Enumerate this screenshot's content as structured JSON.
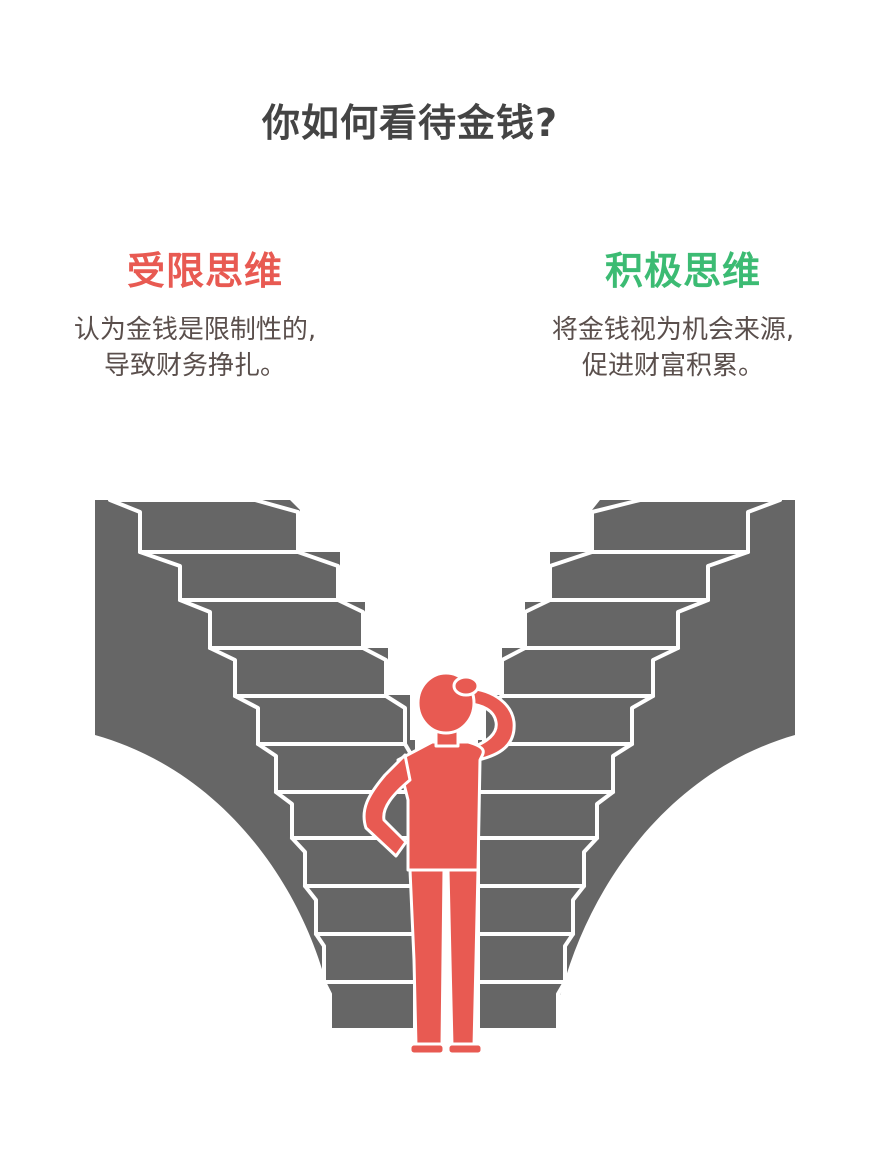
{
  "title": "你如何看待金钱?",
  "left_option": {
    "heading": "受限思维",
    "description": [
      "认为金钱是限制性的,",
      "导致财务挣扎。"
    ],
    "color": "#e85a52"
  },
  "right_option": {
    "heading": "积极思维",
    "description": [
      "将金钱视为机会来源,",
      "促进财富积累。"
    ],
    "color": "#3cbb73"
  },
  "colors": {
    "stairs": "#666666",
    "stair_edge": "#ffffff",
    "person": "#e85a52",
    "text": "#444444"
  },
  "icons": {
    "staircase": "v-shaped-staircase-icon",
    "person": "thinking-person-icon"
  }
}
